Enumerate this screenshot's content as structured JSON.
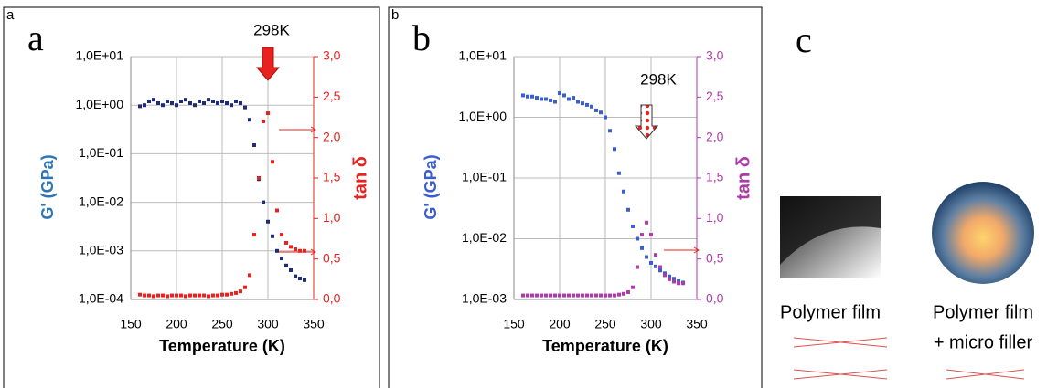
{
  "chart_data": [
    {
      "type": "scatter",
      "panel_label": "a",
      "panel_letter": "a",
      "annotation": "298K",
      "xlabel": "Temperature (K)",
      "ylabel": "G' (GPa)",
      "y2label": "tan δ",
      "xlim": [
        150,
        350
      ],
      "xticks": [
        150,
        200,
        250,
        300,
        350
      ],
      "ylog": true,
      "ylim": [
        0.0001,
        10
      ],
      "yticks": [
        {
          "value": 0.0001,
          "label": "1,0E-04"
        },
        {
          "value": 0.001,
          "label": "1,0E-03"
        },
        {
          "value": 0.01,
          "label": "1,0E-02"
        },
        {
          "value": 0.1,
          "label": "1,0E-01"
        },
        {
          "value": 1,
          "label": "1,0E+00"
        },
        {
          "value": 10,
          "label": "1,0E+01"
        }
      ],
      "y2lim": [
        0,
        3
      ],
      "y2ticks": [
        {
          "value": 0,
          "label": "0,0"
        },
        {
          "value": 0.5,
          "label": "0,5"
        },
        {
          "value": 1,
          "label": "1,0"
        },
        {
          "value": 1.5,
          "label": "1,5"
        },
        {
          "value": 2,
          "label": "2,0"
        },
        {
          "value": 2.5,
          "label": "2,5"
        },
        {
          "value": 3,
          "label": "3,0"
        }
      ],
      "grid": true,
      "x": [
        160,
        165,
        170,
        175,
        180,
        185,
        190,
        195,
        200,
        205,
        210,
        215,
        220,
        225,
        230,
        235,
        240,
        245,
        250,
        255,
        260,
        265,
        270,
        275,
        280,
        285,
        290,
        295,
        300,
        305,
        310,
        315,
        320,
        325,
        330,
        335,
        340
      ],
      "series": [
        {
          "color": "#1f2a78",
          "values": [
            0.95,
            1.0,
            1.2,
            1.3,
            1.1,
            1.0,
            1.2,
            1.1,
            1.0,
            1.2,
            1.3,
            1.1,
            1.0,
            1.2,
            1.1,
            1.3,
            1.2,
            1.1,
            1.2,
            1.1,
            1.0,
            1.2,
            1.1,
            0.9,
            0.5,
            0.15,
            0.03,
            0.01,
            0.004,
            0.002,
            0.001,
            0.0007,
            0.0005,
            0.0004,
            0.0003,
            0.00027,
            0.00025
          ]
        },
        {
          "color": "#e8221e",
          "axis": "y2",
          "values": [
            0.06,
            0.05,
            0.05,
            0.04,
            0.05,
            0.05,
            0.04,
            0.05,
            0.05,
            0.05,
            0.04,
            0.05,
            0.05,
            0.05,
            0.05,
            0.04,
            0.05,
            0.05,
            0.06,
            0.06,
            0.07,
            0.08,
            0.1,
            0.15,
            0.3,
            0.8,
            1.5,
            2.2,
            2.3,
            1.7,
            1.1,
            0.8,
            0.7,
            0.65,
            0.62,
            0.6,
            0.6
          ]
        }
      ]
    },
    {
      "type": "scatter",
      "panel_label": "b",
      "panel_letter": "b",
      "annotation": "298K",
      "xlabel": "Temperature (K)",
      "ylabel": "G' (GPa)",
      "y2label": "tan δ",
      "xlim": [
        150,
        350
      ],
      "xticks": [
        150,
        200,
        250,
        300,
        350
      ],
      "ylog": true,
      "ylim": [
        0.001,
        10
      ],
      "yticks": [
        {
          "value": 0.001,
          "label": "1,0E-03"
        },
        {
          "value": 0.01,
          "label": "1,0E-02"
        },
        {
          "value": 0.1,
          "label": "1,0E-01"
        },
        {
          "value": 1,
          "label": "1,0E+00"
        },
        {
          "value": 10,
          "label": "1,0E+01"
        }
      ],
      "y2lim": [
        0,
        3
      ],
      "y2ticks": [
        {
          "value": 0,
          "label": "0,0"
        },
        {
          "value": 0.5,
          "label": "0,5"
        },
        {
          "value": 1,
          "label": "1,0"
        },
        {
          "value": 1.5,
          "label": "1,5"
        },
        {
          "value": 2,
          "label": "2,0"
        },
        {
          "value": 2.5,
          "label": "2,5"
        },
        {
          "value": 3,
          "label": "3,0"
        }
      ],
      "grid": true,
      "x": [
        160,
        165,
        170,
        175,
        180,
        185,
        190,
        195,
        200,
        205,
        210,
        215,
        220,
        225,
        230,
        235,
        240,
        245,
        250,
        255,
        260,
        265,
        270,
        275,
        280,
        285,
        290,
        295,
        300,
        305,
        310,
        315,
        320,
        325,
        330,
        335
      ],
      "series": [
        {
          "color": "#3a5fcd",
          "values": [
            2.3,
            2.2,
            2.2,
            2.1,
            2.0,
            2.0,
            1.9,
            1.8,
            2.5,
            2.3,
            2.0,
            2.1,
            1.8,
            1.7,
            1.6,
            1.5,
            1.3,
            1.2,
            1.0,
            0.6,
            0.3,
            0.12,
            0.06,
            0.03,
            0.016,
            0.01,
            0.007,
            0.005,
            0.004,
            0.0035,
            0.003,
            0.0027,
            0.0024,
            0.0022,
            0.002,
            0.0019
          ]
        },
        {
          "color": "#b03aa8",
          "axis": "y2",
          "values": [
            0.05,
            0.05,
            0.05,
            0.05,
            0.05,
            0.05,
            0.05,
            0.05,
            0.05,
            0.05,
            0.05,
            0.05,
            0.05,
            0.05,
            0.05,
            0.05,
            0.05,
            0.05,
            0.05,
            0.05,
            0.05,
            0.06,
            0.07,
            0.09,
            0.15,
            0.4,
            0.8,
            0.95,
            0.8,
            0.55,
            0.4,
            0.3,
            0.25,
            0.22,
            0.2,
            0.2
          ]
        }
      ]
    }
  ],
  "panel_c": {
    "letter": "c",
    "left_caption": "Polymer film",
    "right_caption_1": "Polymer film",
    "right_caption_2": "+ micro filler"
  }
}
